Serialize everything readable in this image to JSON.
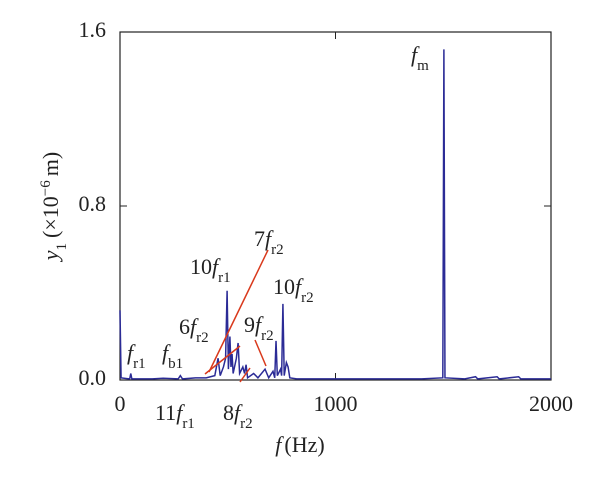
{
  "chart_data": {
    "type": "line",
    "xlabel": {
      "var": "f",
      "text": "(Hz)"
    },
    "ylabel": {
      "var": "y",
      "sub": "1",
      "text": "(×10",
      "sup": "−6",
      "unit": "m)"
    },
    "x": [
      0,
      5,
      45,
      50,
      55,
      150,
      200,
      270,
      280,
      290,
      350,
      400,
      440,
      455,
      465,
      480,
      490,
      497,
      503,
      510,
      515,
      520,
      525,
      540,
      548,
      555,
      570,
      578,
      585,
      592,
      620,
      640,
      673,
      690,
      710,
      718,
      724,
      730,
      745,
      750,
      756,
      762,
      772,
      780,
      788,
      820,
      900,
      1000,
      1200,
      1400,
      1498,
      1503,
      1508,
      1600,
      1650,
      1660,
      1750,
      1760,
      1850,
      1860,
      2000
    ],
    "series": [
      {
        "name": "y1",
        "color": "#2b2b96",
        "values": [
          0.32,
          0.01,
          0.005,
          0.03,
          0.005,
          0.005,
          0.008,
          0.005,
          0.02,
          0.005,
          0.01,
          0.01,
          0.02,
          0.1,
          0.02,
          0.06,
          0.1,
          0.41,
          0.05,
          0.2,
          0.06,
          0.12,
          0.03,
          0.1,
          0.17,
          0.03,
          0.06,
          0.03,
          0.07,
          0.01,
          0.03,
          0.01,
          0.05,
          0.01,
          0.04,
          0.01,
          0.18,
          0.02,
          0.05,
          0.02,
          0.35,
          0.02,
          0.08,
          0.06,
          0.01,
          0.005,
          0.005,
          0.005,
          0.005,
          0.005,
          0.01,
          1.52,
          0.01,
          0.005,
          0.015,
          0.005,
          0.015,
          0.005,
          0.015,
          0.005,
          0.005
        ]
      }
    ],
    "xlim": [
      0,
      2000
    ],
    "ylim": [
      0,
      1.6
    ],
    "xticks": [
      0,
      1000,
      2000
    ],
    "yticks": [
      {
        "value": 0,
        "label": "0.0"
      },
      0.8,
      1.6
    ],
    "leader_color": "#d9391c",
    "annotations": [
      {
        "var": "f",
        "sub": "m"
      },
      {
        "var": "f",
        "sub": "r1"
      },
      {
        "var": "f",
        "sub": "b1"
      },
      {
        "coef": "6",
        "var": "f",
        "sub": "r2"
      },
      {
        "coef": "10",
        "var": "f",
        "sub": "r1"
      },
      {
        "coef": "7",
        "var": "f",
        "sub": "r2"
      },
      {
        "coef": "9",
        "var": "f",
        "sub": "r2"
      },
      {
        "coef": "10",
        "var": "f",
        "sub": "r2"
      },
      {
        "coef": "11",
        "var": "f",
        "sub": "r1"
      },
      {
        "coef": "8",
        "var": "f",
        "sub": "r2"
      }
    ]
  }
}
